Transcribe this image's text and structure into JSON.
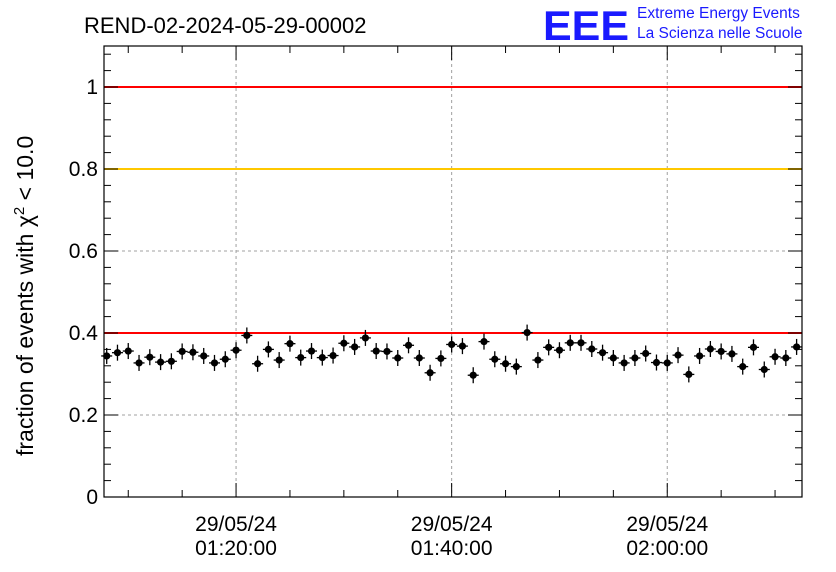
{
  "chart_data": {
    "type": "scatter",
    "title": "REND-02-2024-05-29-00002",
    "ylabel_prefix": "fraction of events with ",
    "ylabel_symbol": "χ",
    "ylabel_sup": "2",
    "ylabel_suffix": " < 10.0",
    "xlabel": "",
    "x_axis": "time",
    "xlim": [
      "01:07:45",
      "02:12:30"
    ],
    "ylim": [
      0,
      1.1
    ],
    "y_ticks": [
      {
        "value": 0,
        "label": "0"
      },
      {
        "value": 0.2,
        "label": "0.2"
      },
      {
        "value": 0.4,
        "label": "0.4"
      },
      {
        "value": 0.6,
        "label": "0.6"
      },
      {
        "value": 0.8,
        "label": "0.8"
      },
      {
        "value": 1,
        "label": "1"
      }
    ],
    "x_ticks": [
      {
        "time": "01:20:00",
        "date_label": "29/05/24",
        "time_label": "01:20:00"
      },
      {
        "time": "01:40:00",
        "date_label": "29/05/24",
        "time_label": "01:40:00"
      },
      {
        "time": "02:00:00",
        "date_label": "29/05/24",
        "time_label": "02:00:00"
      }
    ],
    "reference_lines": [
      {
        "y": 1.0,
        "color": "#ff0000"
      },
      {
        "y": 0.8,
        "color": "#ffc800"
      },
      {
        "y": 0.4,
        "color": "#ff0000"
      }
    ],
    "grid": true,
    "marker_color": "#000000",
    "series": [
      {
        "x_start": "01:08:00",
        "x_step_seconds": 60,
        "values": [
          0.344,
          0.352,
          0.356,
          0.327,
          0.341,
          0.329,
          0.331,
          0.355,
          0.353,
          0.344,
          0.327,
          0.336,
          0.358,
          0.394,
          0.325,
          0.36,
          0.334,
          0.374,
          0.34,
          0.356,
          0.34,
          0.345,
          0.375,
          0.366,
          0.388,
          0.356,
          0.355,
          0.339,
          0.37,
          0.339,
          0.303,
          0.338,
          0.372,
          0.368,
          0.297,
          0.379,
          0.336,
          0.325,
          0.318,
          0.401,
          0.334,
          0.365,
          0.358,
          0.376,
          0.376,
          0.361,
          0.352,
          0.339,
          0.327,
          0.339,
          0.35,
          0.328,
          0.327,
          0.346,
          0.299,
          0.344,
          0.361,
          0.355,
          0.349,
          0.318,
          0.365,
          0.311,
          0.342,
          0.339,
          0.366
        ]
      }
    ]
  },
  "logo": {
    "letters": "EEE",
    "line1": "Extreme Energy Events",
    "line2": "La Scienza nelle Scuole"
  }
}
